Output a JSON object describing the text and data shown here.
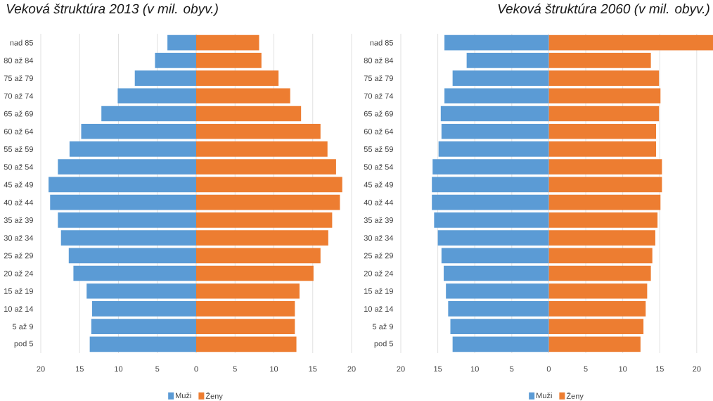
{
  "chart_data": [
    {
      "type": "bar",
      "orientation": "horizontal",
      "stacked": true,
      "title": "Veková štruktúra 2013 (v mil. obyv.)",
      "categories": [
        "nad 85",
        "80 až 84",
        "75 až 79",
        "70 až 74",
        "65 až 69",
        "60 až 64",
        "55 až 59",
        "50 až 54",
        "45 až 49",
        "40 až 44",
        "35 až 39",
        "30 až 34",
        "25 až 29",
        "20 až 24",
        "15 až 19",
        "10 až 14",
        "5 až 9",
        "pod 5"
      ],
      "series": [
        {
          "name": "Muži",
          "color": "#5b9bd5",
          "values": [
            -3.7,
            -5.3,
            -7.9,
            -10.1,
            -12.2,
            -14.8,
            -16.3,
            -17.8,
            -19.0,
            -18.8,
            -17.8,
            -17.4,
            -16.4,
            -15.8,
            -14.1,
            -13.4,
            -13.5,
            -13.7
          ]
        },
        {
          "name": "Ženy",
          "color": "#ed7d31",
          "values": [
            8.1,
            8.4,
            10.6,
            12.1,
            13.5,
            16.0,
            16.9,
            18.0,
            18.8,
            18.5,
            17.5,
            17.0,
            16.0,
            15.1,
            13.3,
            12.7,
            12.7,
            12.9
          ]
        }
      ],
      "xlim": [
        -20,
        20
      ],
      "xticks": [
        {
          "value": -20,
          "label": "20"
        },
        {
          "value": -15,
          "label": "15"
        },
        {
          "value": -10,
          "label": "10"
        },
        {
          "value": -5,
          "label": "5"
        },
        0,
        5,
        10,
        15,
        20
      ],
      "grid": "x",
      "legend": "bottom"
    },
    {
      "type": "bar",
      "orientation": "horizontal",
      "stacked": true,
      "title": "Veková štruktúra 2060 (v mil. obyv.)",
      "categories": [
        "nad 85",
        "80 až 84",
        "75 až 79",
        "70 až 74",
        "65 až 69",
        "60 až 64",
        "55 až 59",
        "50 až 54",
        "45 až 49",
        "40 až 44",
        "35 až 39",
        "30 až 34",
        "25 až 29",
        "20 až 24",
        "15 až 19",
        "10 až 14",
        "5 až 9",
        "pod 5"
      ],
      "series": [
        {
          "name": "Muži",
          "color": "#5b9bd5",
          "values": [
            -14.1,
            -11.1,
            -13.0,
            -14.1,
            -14.6,
            -14.5,
            -14.9,
            -15.7,
            -15.8,
            -15.8,
            -15.5,
            -15.0,
            -14.5,
            -14.2,
            -13.9,
            -13.6,
            -13.3,
            -13.0
          ]
        },
        {
          "name": "Ženy",
          "color": "#ed7d31",
          "values": [
            22.2,
            13.8,
            14.9,
            15.1,
            14.9,
            14.5,
            14.5,
            15.3,
            15.3,
            15.1,
            14.7,
            14.4,
            14.0,
            13.8,
            13.3,
            13.1,
            12.8,
            12.4
          ]
        }
      ],
      "xlim": [
        -20,
        22.2
      ],
      "xticks": [
        {
          "value": -20,
          "label": "20"
        },
        {
          "value": -15,
          "label": "15"
        },
        {
          "value": -10,
          "label": "10"
        },
        {
          "value": -5,
          "label": "5"
        },
        0,
        5,
        10,
        15,
        20
      ],
      "grid": "x",
      "legend": "bottom"
    }
  ]
}
